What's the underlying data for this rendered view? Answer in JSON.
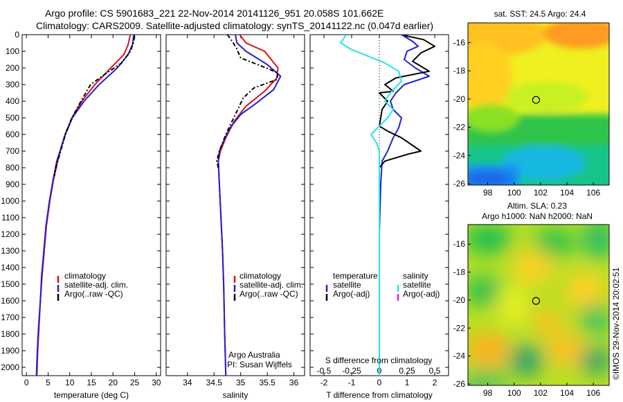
{
  "title_line1": "Argo profile: CS 5901683_221 22-Nov-2014 20141126_951 20.058S 101.662E",
  "title_line2": "Climatology: CARS2009. Satellite-adjusted climatology: synTS_20141122.nc (0.047d earlier)",
  "footer": {
    "stamp": "©IMOS 29-Nov-2014 20:02:51",
    "credit1": "Argo Australia",
    "credit2": "PI: Susan Wijffels"
  },
  "colors": {
    "climatology": "#dd1111",
    "satellite_adj": "#1f1fd6",
    "argo": "#000000",
    "salinity_satellite": "#22e5e5",
    "salinity_argo_adj": "#dd22dd"
  },
  "chart_data": [
    {
      "type": "line",
      "id": "temperature",
      "xlabel": "temperature (deg C)",
      "ylabel": "",
      "xlim": [
        -1,
        31
      ],
      "ylim": [
        2050,
        0
      ],
      "xticks": [
        0,
        5,
        10,
        15,
        20,
        25,
        30
      ],
      "yticks": [
        0,
        100,
        200,
        300,
        400,
        500,
        600,
        700,
        800,
        900,
        1000,
        1100,
        1200,
        1300,
        1400,
        1500,
        1600,
        1700,
        1800,
        1900,
        2000
      ],
      "legend": [
        "climatology",
        "satellite-adj. clim.",
        "Argo(..raw -QC)"
      ],
      "legend_position": "lower-center",
      "series": [
        {
          "name": "climatology",
          "color_key": "climatology",
          "dash": "",
          "points": [
            [
              24.0,
              0
            ],
            [
              23.5,
              60
            ],
            [
              22.5,
              120
            ],
            [
              19.5,
              200
            ],
            [
              15.8,
              300
            ],
            [
              12.8,
              400
            ],
            [
              10.5,
              500
            ],
            [
              8.9,
              600
            ],
            [
              8.0,
              680
            ],
            [
              7.2,
              760
            ],
            [
              6.2,
              880
            ],
            [
              5.4,
              1000
            ],
            [
              4.6,
              1150
            ],
            [
              4.1,
              1300
            ],
            [
              3.6,
              1450
            ],
            [
              3.2,
              1600
            ],
            [
              2.9,
              1750
            ],
            [
              2.6,
              1900
            ],
            [
              2.4,
              2050
            ]
          ]
        },
        {
          "name": "satellite-adj. clim.",
          "color_key": "satellite_adj",
          "dash": "",
          "points": [
            [
              24.8,
              0
            ],
            [
              24.5,
              60
            ],
            [
              23.5,
              120
            ],
            [
              21.0,
              200
            ],
            [
              16.8,
              300
            ],
            [
              13.3,
              400
            ],
            [
              10.6,
              500
            ],
            [
              9.0,
              600
            ],
            [
              8.0,
              680
            ],
            [
              7.0,
              760
            ],
            [
              6.1,
              880
            ],
            [
              5.3,
              1000
            ],
            [
              4.5,
              1150
            ],
            [
              4.0,
              1300
            ],
            [
              3.5,
              1450
            ],
            [
              3.2,
              1600
            ],
            [
              2.8,
              1750
            ],
            [
              2.5,
              1900
            ],
            [
              2.3,
              2050
            ]
          ]
        },
        {
          "name": "Argo(..raw -QC)",
          "color_key": "argo",
          "dash": "6,3,2,3",
          "points": [
            [
              25.0,
              10
            ],
            [
              24.7,
              50
            ],
            [
              24.0,
              100
            ],
            [
              22.0,
              170
            ],
            [
              18.0,
              240
            ],
            [
              14.8,
              300
            ],
            [
              12.6,
              400
            ],
            [
              10.5,
              500
            ],
            [
              9.0,
              600
            ],
            [
              7.9,
              700
            ],
            [
              7.0,
              780
            ],
            [
              6.4,
              850
            ]
          ]
        }
      ]
    },
    {
      "type": "line",
      "id": "salinity",
      "xlabel": "salinity",
      "ylabel": "",
      "xlim": [
        33.6,
        36.2
      ],
      "ylim": [
        2050,
        0
      ],
      "xticks": [
        34,
        34.5,
        35,
        35.5,
        36
      ],
      "yticks": [],
      "legend": [
        "climatology",
        "satellite-adj. clim.",
        "Argo(..raw -QC)"
      ],
      "legend_position": "lower-center",
      "series": [
        {
          "name": "climatology",
          "color_key": "climatology",
          "dash": "",
          "points": [
            [
              34.98,
              0
            ],
            [
              35.1,
              50
            ],
            [
              35.45,
              100
            ],
            [
              35.7,
              200
            ],
            [
              35.68,
              260
            ],
            [
              35.45,
              340
            ],
            [
              35.1,
              430
            ],
            [
              34.88,
              520
            ],
            [
              34.72,
              620
            ],
            [
              34.62,
              700
            ],
            [
              34.58,
              760
            ],
            [
              34.6,
              900
            ],
            [
              34.63,
              1100
            ],
            [
              34.66,
              1300
            ],
            [
              34.68,
              1500
            ],
            [
              34.7,
              1800
            ],
            [
              34.72,
              2050
            ]
          ]
        },
        {
          "name": "satellite-adj. clim.",
          "color_key": "satellite_adj",
          "dash": "",
          "points": [
            [
              34.9,
              0
            ],
            [
              34.93,
              50
            ],
            [
              35.1,
              100
            ],
            [
              35.5,
              180
            ],
            [
              35.75,
              250
            ],
            [
              35.62,
              330
            ],
            [
              35.3,
              410
            ],
            [
              35.0,
              480
            ],
            [
              34.8,
              560
            ],
            [
              34.68,
              640
            ],
            [
              34.6,
              700
            ],
            [
              34.58,
              760
            ],
            [
              34.6,
              900
            ],
            [
              34.63,
              1100
            ],
            [
              34.66,
              1300
            ],
            [
              34.68,
              1500
            ],
            [
              34.7,
              1800
            ],
            [
              34.72,
              2050
            ]
          ]
        },
        {
          "name": "Argo(..raw -QC)",
          "color_key": "argo",
          "dash": "6,3,2,3",
          "points": [
            [
              34.75,
              0
            ],
            [
              34.82,
              30
            ],
            [
              34.92,
              80
            ],
            [
              35.0,
              140
            ],
            [
              35.4,
              190
            ],
            [
              35.7,
              230
            ],
            [
              35.68,
              270
            ],
            [
              35.25,
              320
            ],
            [
              35.05,
              380
            ],
            [
              34.9,
              480
            ],
            [
              34.72,
              600
            ],
            [
              34.6,
              700
            ],
            [
              34.55,
              760
            ],
            [
              34.58,
              800
            ]
          ]
        }
      ]
    },
    {
      "type": "line",
      "id": "difference",
      "xlabel": "T difference from climatology",
      "xlabel2": "S difference from climatology",
      "ylabel": "",
      "xlim": [
        -2.5,
        2.5
      ],
      "ylim": [
        2050,
        0
      ],
      "xticks": [
        -2,
        -1,
        0,
        1,
        2
      ],
      "xticklabels": [
        "-2",
        "-1",
        "0",
        "1",
        "2"
      ],
      "sticks": [
        -2,
        -1,
        0,
        1,
        2
      ],
      "sticklabels": [
        "-0.5",
        "-0.25",
        "0",
        "0.25",
        "0.5"
      ],
      "yticks": [],
      "legend_titles": [
        "temperature",
        "salinity"
      ],
      "legend_left": [
        "satellite",
        "Argo(-adj)"
      ],
      "legend_right": [
        "satellite",
        "Argo(-adj)"
      ],
      "legend_position": "lower-center",
      "series": [
        {
          "name": "satellite",
          "group": "temperature",
          "color_key": "satellite_adj",
          "dash": "",
          "points": [
            [
              0.8,
              0
            ],
            [
              1.2,
              40
            ],
            [
              1.4,
              70
            ],
            [
              1.0,
              100
            ],
            [
              0.9,
              150
            ],
            [
              1.3,
              200
            ],
            [
              1.8,
              250
            ],
            [
              0.9,
              300
            ],
            [
              0.6,
              350
            ],
            [
              0.4,
              400
            ],
            [
              0.5,
              450
            ],
            [
              0.8,
              500
            ],
            [
              0.7,
              560
            ],
            [
              0.5,
              620
            ],
            [
              0.3,
              700
            ],
            [
              0.1,
              760
            ],
            [
              0.05,
              900
            ],
            [
              0.0,
              1200
            ],
            [
              0.0,
              2050
            ]
          ]
        },
        {
          "name": "Argo(-adj)",
          "group": "temperature",
          "color_key": "argo",
          "dash": "",
          "points": [
            [
              0.9,
              5
            ],
            [
              1.6,
              30
            ],
            [
              2.0,
              70
            ],
            [
              1.5,
              110
            ],
            [
              1.2,
              160
            ],
            [
              1.8,
              220
            ],
            [
              0.6,
              260
            ],
            [
              0.2,
              300
            ],
            [
              0.5,
              340
            ],
            [
              0.0,
              350
            ],
            [
              0.3,
              400
            ],
            [
              0.1,
              450
            ],
            [
              0.0,
              550
            ],
            [
              0.3,
              580
            ],
            [
              0.8,
              620
            ],
            [
              1.5,
              700
            ],
            [
              1.0,
              720
            ],
            [
              0.2,
              760
            ],
            [
              0.0,
              800
            ]
          ]
        },
        {
          "name": "satellite",
          "group": "salinity",
          "color_key": "salinity_satellite",
          "dash": "",
          "points": [
            [
              -1.2,
              0
            ],
            [
              -1.4,
              50
            ],
            [
              -1.0,
              90
            ],
            [
              -0.4,
              130
            ],
            [
              0.2,
              170
            ],
            [
              0.7,
              220
            ],
            [
              0.8,
              280
            ],
            [
              0.4,
              350
            ],
            [
              0.2,
              400
            ],
            [
              0.5,
              450
            ],
            [
              0.3,
              500
            ],
            [
              0.0,
              550
            ],
            [
              -0.3,
              600
            ],
            [
              -0.1,
              650
            ],
            [
              0.0,
              700
            ],
            [
              0.0,
              760
            ],
            [
              0.0,
              2050
            ]
          ]
        }
      ]
    }
  ],
  "maps": [
    {
      "id": "sst-map",
      "title": "sat. SST: 24.5 Argo: 24.4",
      "xticks": [
        98,
        100,
        102,
        104,
        106
      ],
      "yticks": [
        -16,
        -18,
        -20,
        -22,
        -24,
        -26
      ],
      "xlim": [
        96.5,
        107.2
      ],
      "ylim": [
        -26.1,
        -14.6
      ],
      "marker": [
        101.66,
        -20.06
      ]
    },
    {
      "id": "sla-map",
      "title": "Altim. SLA: 0.23",
      "subtitle": "Argo h1000: NaN h2000: NaN",
      "xticks": [
        98,
        100,
        102,
        104,
        106
      ],
      "yticks": [
        -16,
        -18,
        -20,
        -22,
        -24,
        -26
      ],
      "xlim": [
        96.5,
        107.2
      ],
      "ylim": [
        -26.1,
        -14.6
      ],
      "marker": [
        101.66,
        -20.06
      ]
    }
  ]
}
